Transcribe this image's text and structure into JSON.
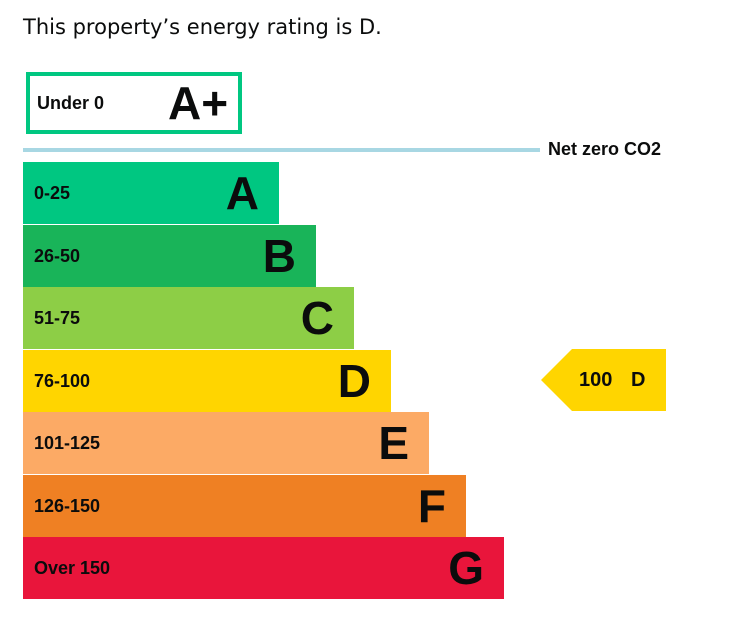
{
  "headline": "This property’s energy rating is D.",
  "chart_data": {
    "type": "bar",
    "title": "This property’s energy rating is D.",
    "orientation": "horizontal",
    "bands": [
      {
        "range": "Under 0",
        "letter": "A+",
        "color": "#00c781",
        "outlined": true
      },
      {
        "range": "0-25",
        "letter": "A",
        "color": "#00c781"
      },
      {
        "range": "26-50",
        "letter": "B",
        "color": "#19b459"
      },
      {
        "range": "51-75",
        "letter": "C",
        "color": "#8dce46"
      },
      {
        "range": "76-100",
        "letter": "D",
        "color": "#ffd500"
      },
      {
        "range": "101-125",
        "letter": "E",
        "color": "#fcaa65"
      },
      {
        "range": "126-150",
        "letter": "F",
        "color": "#ef8023"
      },
      {
        "range": "Over 150",
        "letter": "G",
        "color": "#e9153b"
      }
    ],
    "threshold": {
      "label": "Net zero CO2",
      "color": "#a8d7e3"
    },
    "current_rating": {
      "score": "100",
      "band": "D",
      "color": "#ffd500"
    }
  }
}
